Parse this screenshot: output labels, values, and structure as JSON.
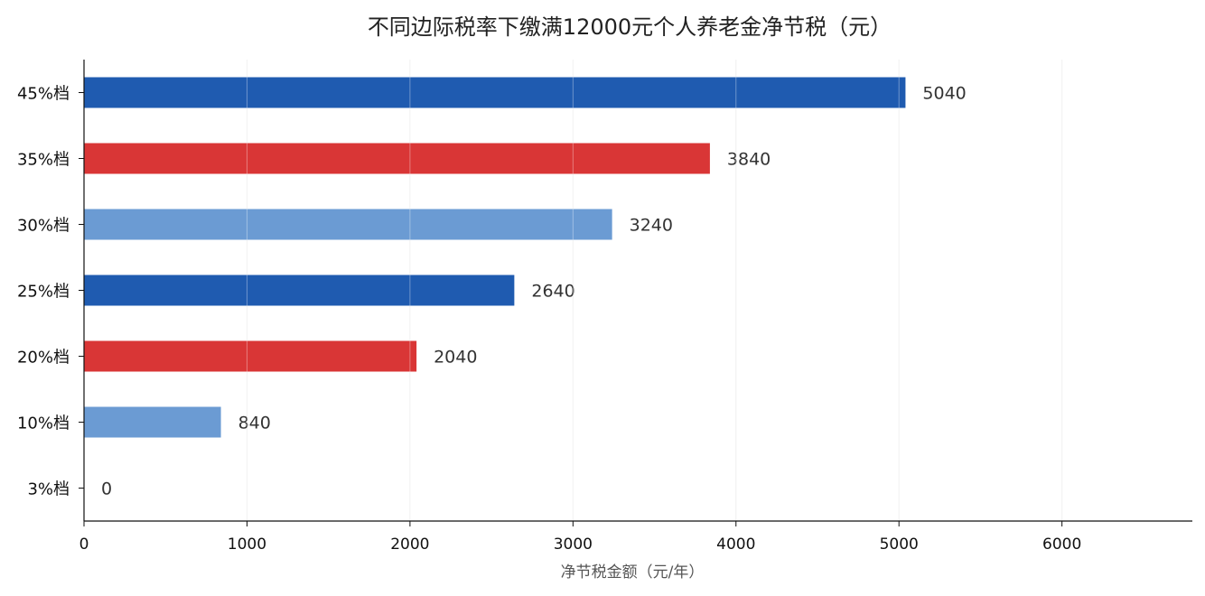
{
  "chart_data": {
    "type": "bar",
    "orientation": "horizontal",
    "title": "不同边际税率下缴满12000元个人养老金净节税（元）",
    "xlabel": "净节税金额（元/年）",
    "ylabel": "",
    "categories": [
      "3%档",
      "10%档",
      "20%档",
      "25%档",
      "30%档",
      "35%档",
      "45%档"
    ],
    "values": [
      0,
      840,
      2040,
      2640,
      3240,
      3840,
      5040
    ],
    "value_labels": [
      "0",
      "840",
      "2040",
      "2640",
      "3240",
      "3840",
      "5040"
    ],
    "bar_colors": [
      "#1f5bb0",
      "#6b9bd3",
      "#d93636",
      "#1f5bb0",
      "#6b9bd3",
      "#d93636",
      "#1f5bb0"
    ],
    "xlim": [
      0,
      6800
    ],
    "xticks": [
      0,
      1000,
      2000,
      3000,
      4000,
      5000,
      6000
    ],
    "xtick_labels": [
      "0",
      "1000",
      "2000",
      "3000",
      "4000",
      "5000",
      "6000"
    ],
    "grid": "vertical",
    "legend": "none"
  }
}
